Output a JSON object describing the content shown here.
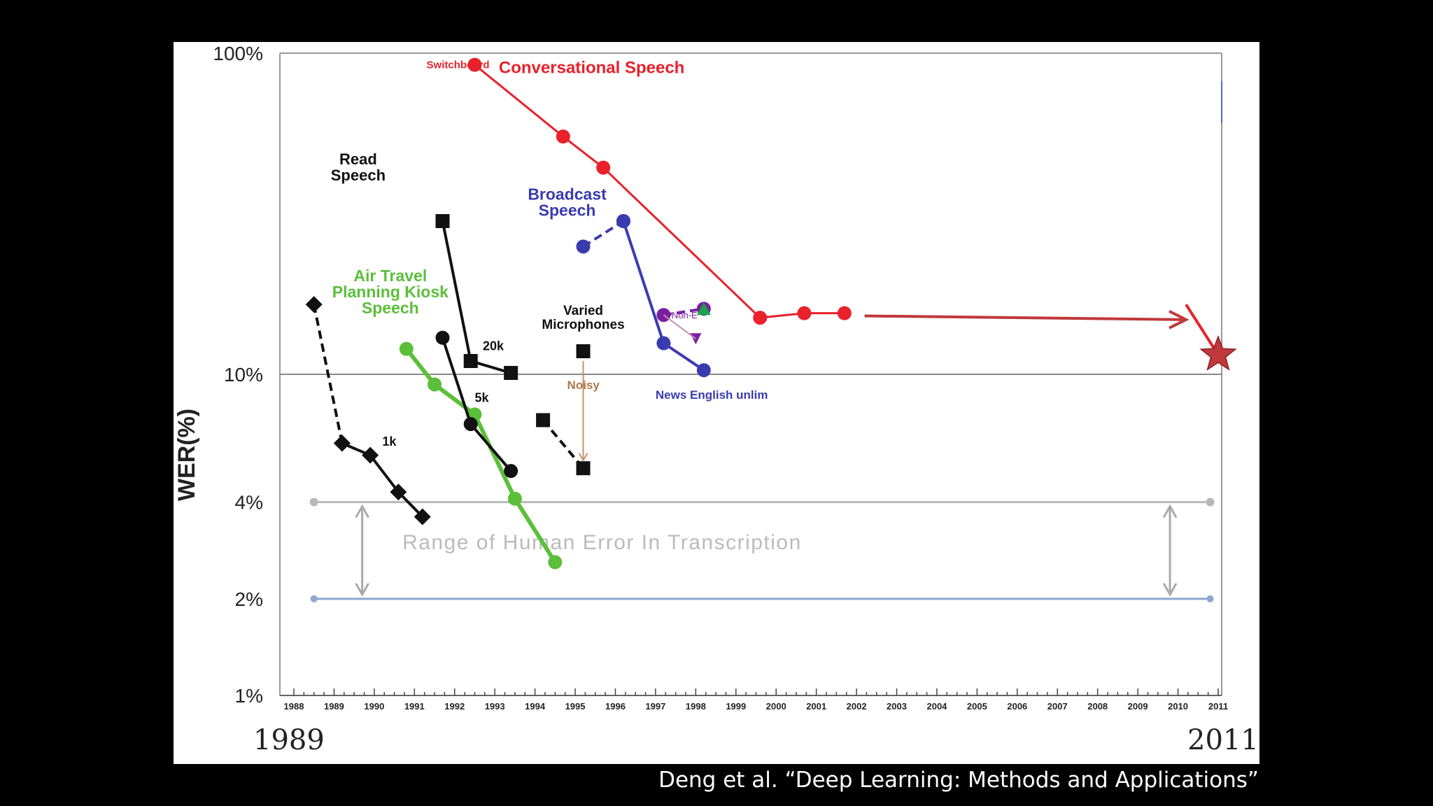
{
  "citation": "Deng et al. “Deep Learning: Methods and Applications”",
  "footer": {
    "start_year": "1989",
    "end_year": "2011"
  },
  "chart_data": {
    "type": "line",
    "ylabel": "WER(%)",
    "y_scale": "log",
    "ylim": [
      1,
      100
    ],
    "y_ticks": [
      {
        "v": 100,
        "label": "100%"
      },
      {
        "v": 10,
        "label": "10%"
      },
      {
        "v": 4,
        "label": "4%"
      },
      {
        "v": 2,
        "label": "2%"
      },
      {
        "v": 1,
        "label": "1%"
      }
    ],
    "xlim": [
      1988,
      2011
    ],
    "x_tick_labels": [
      "1988",
      "1989",
      "1990",
      "1991",
      "1992",
      "1993",
      "1994",
      "1995",
      "1996",
      "1997",
      "1998",
      "1999",
      "2000",
      "2001",
      "2002",
      "2003",
      "2004",
      "2005",
      "2006",
      "2007",
      "2008",
      "2009",
      "2010",
      "2011"
    ],
    "human_error_range": {
      "low": 2,
      "high": 4,
      "label": "Range of Human Error In Transcription",
      "color": "#b8b8b8"
    },
    "series": [
      {
        "name": "Conversational Speech",
        "color": "#e8212b",
        "marker": "circle",
        "dash": false,
        "points": [
          [
            1992.5,
            92
          ],
          [
            1994.7,
            55
          ],
          [
            1995.7,
            44
          ],
          [
            1999.6,
            15.0
          ],
          [
            2000.7,
            15.5
          ],
          [
            2001.7,
            15.5
          ]
        ]
      },
      {
        "name": "Broadcast Speech",
        "color": "#3b3bb0",
        "marker": "circle",
        "dash": false,
        "points": [
          [
            1996.2,
            30
          ],
          [
            1997.2,
            12.5
          ],
          [
            1998.2,
            10.3
          ]
        ]
      },
      {
        "name": "",
        "color": "#3b3bb0",
        "marker": "circle",
        "dash": true,
        "points": [
          [
            1995.2,
            25
          ],
          [
            1996.2,
            30
          ]
        ]
      },
      {
        "name": "Air Travel Planning Kiosk Speech",
        "color": "#5bbf3a",
        "marker": "circle",
        "dash": false,
        "points": [
          [
            1990.8,
            12.0
          ],
          [
            1991.5,
            9.3
          ],
          [
            1992.5,
            7.5
          ],
          [
            1993.5,
            4.1
          ],
          [
            1994.5,
            2.6
          ]
        ]
      },
      {
        "name": "1k",
        "color": "#111111",
        "marker": "diamond",
        "dash": false,
        "points": [
          [
            1989.2,
            6.1
          ],
          [
            1989.9,
            5.6
          ],
          [
            1990.6,
            4.3
          ],
          [
            1991.2,
            3.6
          ]
        ]
      },
      {
        "name": "",
        "color": "#111111",
        "marker": "diamond",
        "dash": true,
        "points": [
          [
            1988.5,
            16.5
          ],
          [
            1989.2,
            6.1
          ]
        ]
      },
      {
        "name": "20k",
        "color": "#111111",
        "marker": "square",
        "dash": false,
        "points": [
          [
            1991.7,
            30.0
          ],
          [
            1992.4,
            11.0
          ],
          [
            1993.4,
            10.1
          ]
        ]
      },
      {
        "name": "5k",
        "color": "#111111",
        "marker": "circle",
        "dash": false,
        "points": [
          [
            1991.7,
            13.0
          ],
          [
            1992.4,
            7.0
          ],
          [
            1993.4,
            5.0
          ]
        ]
      },
      {
        "name": "Varied Microphones",
        "color": "#111111",
        "marker": "square",
        "dash": false,
        "points": [
          [
            1995.2,
            11.8
          ]
        ]
      },
      {
        "name": "",
        "color": "#111111",
        "marker": "square",
        "dash": true,
        "points": [
          [
            1994.2,
            7.2
          ],
          [
            1995.2,
            5.1
          ]
        ]
      },
      {
        "name": "Non-E",
        "color": "#7a1fa2",
        "marker": "circle",
        "dash": true,
        "points": [
          [
            1997.2,
            15.3
          ],
          [
            1998.2,
            16.0
          ]
        ]
      }
    ],
    "annotations": {
      "switchboard": "Switchboard",
      "conversational": "Conversational Speech",
      "read_speech": [
        "Read",
        "Speech"
      ],
      "broadcast": [
        "Broadcast",
        "Speech"
      ],
      "air_travel": [
        "Air Travel",
        "Planning Kiosk",
        "Speech"
      ],
      "varied": [
        "Varied",
        "Microphones"
      ],
      "news_english": "News English unlim",
      "non_e": "Non-E",
      "noisy": "Noisy",
      "label_20k": "20k",
      "label_5k": "5k",
      "label_1k": "1k"
    },
    "projection": {
      "from": [
        2002.2,
        15.2
      ],
      "to": [
        2010.2,
        14.8
      ],
      "target": [
        2011.0,
        11.5
      ],
      "color": "#c0393b"
    }
  }
}
